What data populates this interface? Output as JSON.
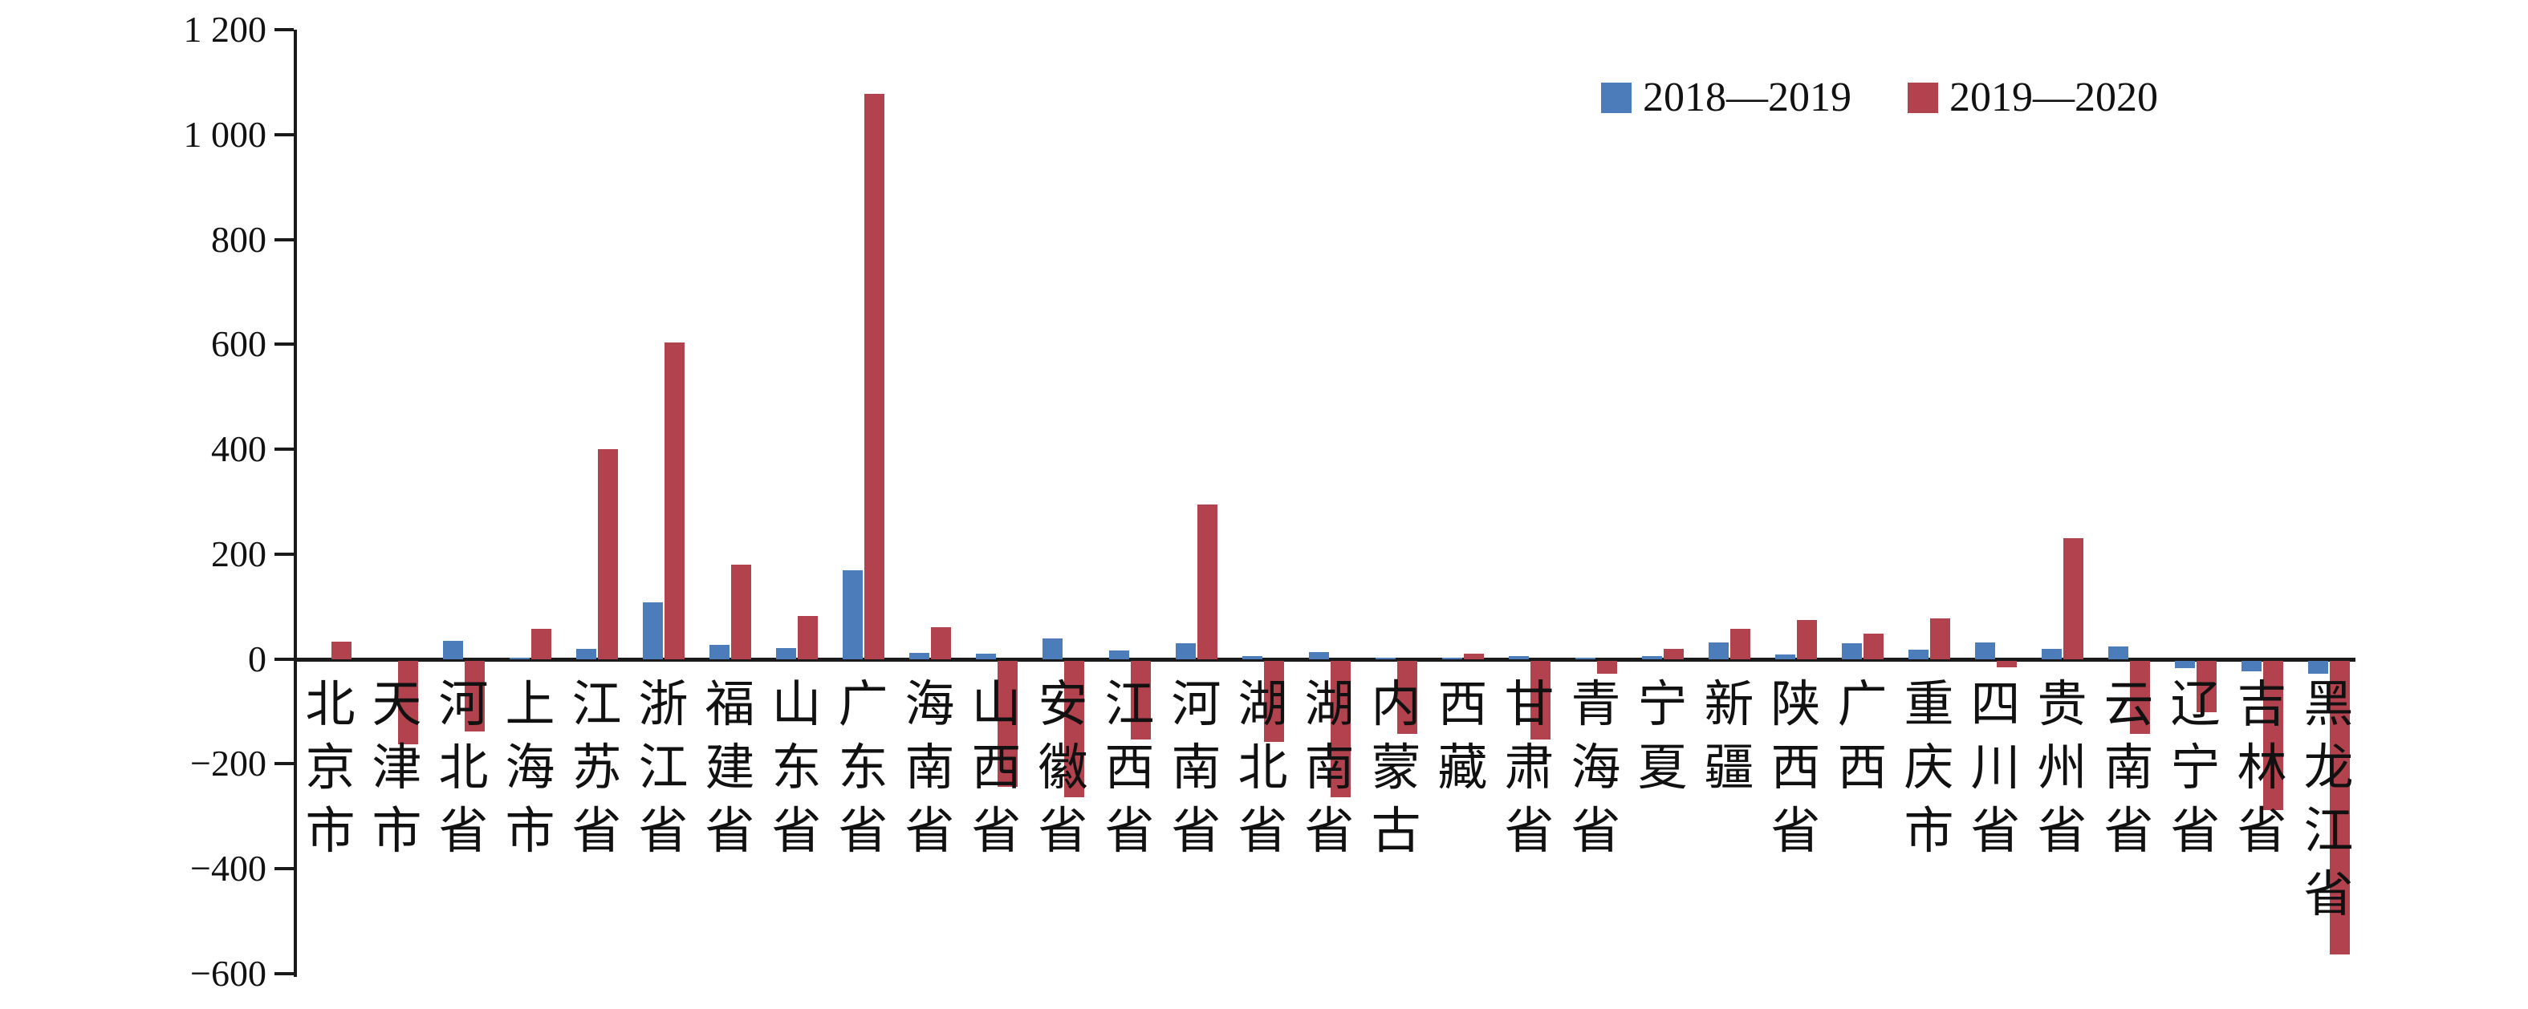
{
  "chart_data": {
    "type": "bar",
    "title": "",
    "xlabel": "",
    "ylabel": "",
    "categories": [
      "北京市",
      "天津市",
      "河北省",
      "上海市",
      "江苏省",
      "浙江省",
      "福建省",
      "山东省",
      "广东省",
      "海南省",
      "山西省",
      "安徽省",
      "江西省",
      "河南省",
      "湖北省",
      "湖南省",
      "内蒙古",
      "西藏",
      "甘肃省",
      "青海省",
      "宁夏",
      "新疆",
      "陕西省",
      "广西",
      "重庆市",
      "四川省",
      "贵州省",
      "云南省",
      "辽宁省",
      "吉林省",
      "黑龙江省"
    ],
    "series": [
      {
        "name": "2018—2019",
        "color": "#4d7cba",
        "values": [
          0,
          0,
          35,
          3,
          20,
          108,
          27,
          21,
          170,
          12,
          10,
          40,
          16,
          30,
          5,
          13,
          2,
          3,
          5,
          2,
          5,
          32,
          8,
          30,
          18,
          31,
          19,
          24,
          -15,
          -20,
          -25
        ]
      },
      {
        "name": "2019—2020",
        "color": "#b2434e",
        "values": [
          33,
          -160,
          -135,
          57,
          400,
          603,
          180,
          82,
          1078,
          60,
          -240,
          -260,
          -150,
          295,
          -155,
          -260,
          -140,
          10,
          -150,
          -25,
          20,
          57,
          74,
          49,
          78,
          -13,
          230,
          -140,
          -98,
          -285,
          -560
        ]
      }
    ],
    "ylim": [
      -600,
      1200
    ],
    "ytick_interval": 200,
    "ytick_labels": [
      "1 200",
      "1 000",
      "800",
      "600",
      "400",
      "200",
      "0",
      "−200",
      "−400",
      "−600"
    ],
    "grid": false,
    "legend_position": "top-right",
    "axis_color": "#1a1a1a"
  }
}
